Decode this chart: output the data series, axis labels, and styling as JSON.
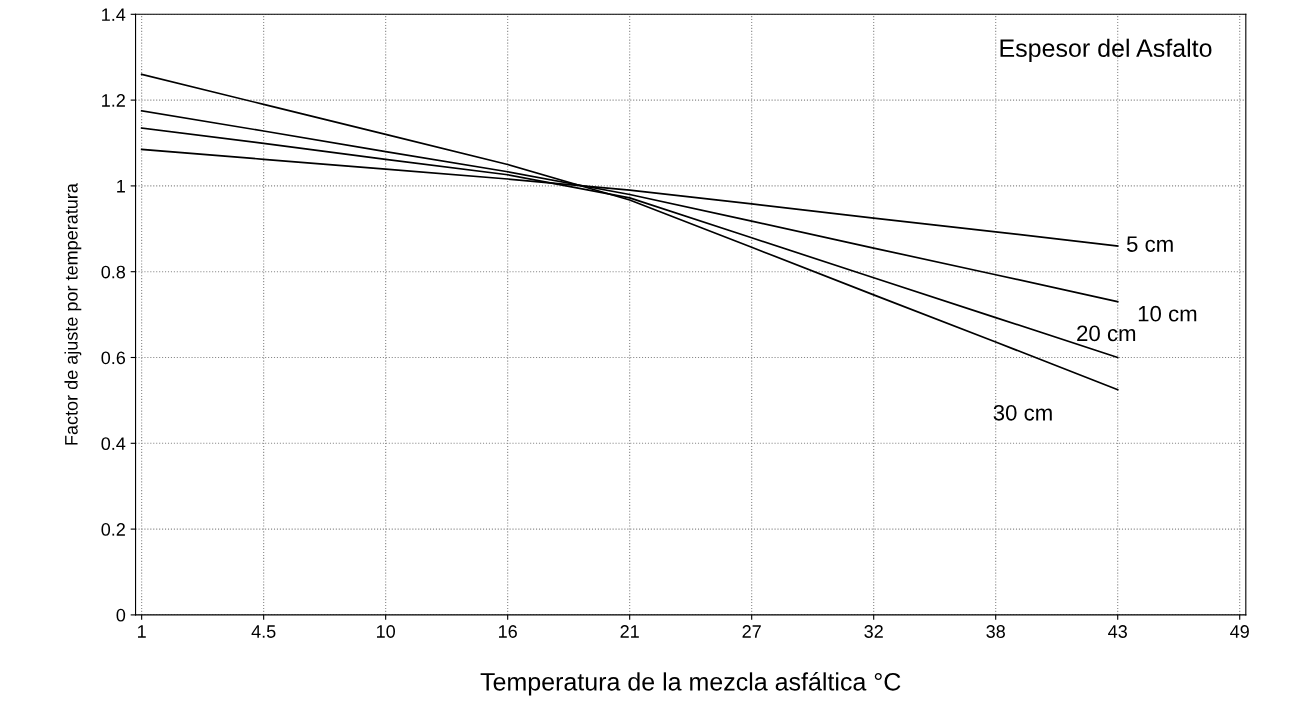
{
  "chart_data": {
    "type": "line",
    "xlabel": "Temperatura de la mezcla asfáltica °C",
    "ylabel": "Factor de ajuste por temperatura",
    "categories": [
      "1",
      "4.5",
      "10",
      "16",
      "21",
      "27",
      "32",
      "38",
      "43",
      "49"
    ],
    "series": [
      {
        "name": "5 cm",
        "color": "#000000",
        "values": [
          1.085,
          1.062,
          1.039,
          1.016,
          0.99,
          0.958,
          0.925,
          0.893,
          0.86,
          null
        ]
      },
      {
        "name": "10 cm",
        "color": "#000000",
        "values": [
          1.175,
          1.128,
          1.08,
          1.033,
          0.98,
          0.918,
          0.855,
          0.793,
          0.73,
          null
        ]
      },
      {
        "name": "20 cm",
        "color": "#000000",
        "values": [
          1.135,
          1.099,
          1.062,
          1.026,
          0.972,
          0.879,
          0.786,
          0.693,
          0.6,
          null
        ]
      },
      {
        "name": "30 cm",
        "color": "#000000",
        "values": [
          1.26,
          1.19,
          1.12,
          1.05,
          0.967,
          0.857,
          0.746,
          0.636,
          0.525,
          null
        ]
      }
    ],
    "annotations": [
      "Espesor del Asfalto"
    ],
    "ylim": [
      0,
      1.4
    ],
    "yticks": [
      0,
      0.2,
      0.4,
      0.6,
      0.8,
      1,
      1.2,
      1.4
    ],
    "grid": true,
    "line_style": "solid",
    "marker": "none",
    "legend": false
  }
}
